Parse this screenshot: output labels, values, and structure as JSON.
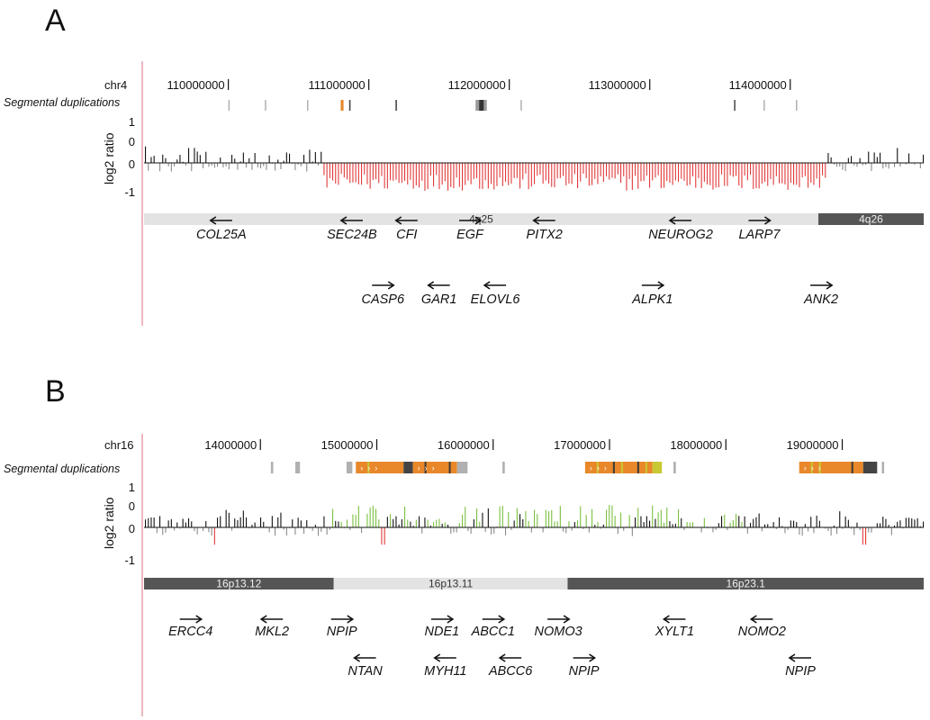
{
  "colors": {
    "loss": "#e23a3a",
    "gain": "#7cc142",
    "neutral_pos": "#111111",
    "neutral_neg": "#8a8a8a",
    "band_dark": "#555555",
    "band_light": "#e3e3e3",
    "segdup_orange": "#e8882a",
    "segdup_yellow": "#c8c832",
    "segdup_gray": "#7a7a7a",
    "left_rule": "#e8a0a8"
  },
  "chart_data": [
    {
      "panel": "A",
      "type": "bar",
      "chromosome_label": "chr4",
      "segdup_label": "Segmental duplications",
      "ylabel": "log2 ratio",
      "yticks": [
        "1",
        "0",
        "0",
        "-1"
      ],
      "xlim": [
        109400000,
        114950000
      ],
      "x_ticks": [
        {
          "value": 110000000,
          "label": "110000000"
        },
        {
          "value": 111000000,
          "label": "111000000"
        },
        {
          "value": 112000000,
          "label": "112000000"
        },
        {
          "value": 113000000,
          "label": "113000000"
        },
        {
          "value": 114000000,
          "label": "114000000"
        }
      ],
      "segdups": [
        {
          "start": 110000000,
          "end": 110006000,
          "color": "gray"
        },
        {
          "start": 110260000,
          "end": 110266000,
          "color": "gray"
        },
        {
          "start": 110560000,
          "end": 110566000,
          "color": "gray"
        },
        {
          "start": 110800000,
          "end": 110820000,
          "color": "orange"
        },
        {
          "start": 110860000,
          "end": 110870000,
          "color": "dark"
        },
        {
          "start": 111190000,
          "end": 111200000,
          "color": "dark"
        },
        {
          "start": 111760000,
          "end": 111840000,
          "color": "mixed"
        },
        {
          "start": 112080000,
          "end": 112088000,
          "color": "gray"
        },
        {
          "start": 113600000,
          "end": 113608000,
          "color": "dark"
        },
        {
          "start": 113810000,
          "end": 113816000,
          "color": "gray"
        },
        {
          "start": 114040000,
          "end": 114046000,
          "color": "gray"
        }
      ],
      "loss_region": [
        110660000,
        114260000
      ],
      "loss_mean": -0.85,
      "bands": [
        {
          "label": "4q25",
          "start": 109400000,
          "end": 114200000,
          "shade": "light"
        },
        {
          "label": "4q26",
          "start": 114200000,
          "end": 114950000,
          "shade": "dark"
        }
      ],
      "genes": [
        {
          "name": "COL25A",
          "pos": 109950000,
          "dir": "left",
          "row": 0
        },
        {
          "name": "SEC24B",
          "pos": 110880000,
          "dir": "left",
          "row": 0
        },
        {
          "name": "CFI",
          "pos": 111270000,
          "dir": "left",
          "row": 0
        },
        {
          "name": "EGF",
          "pos": 111720000,
          "dir": "right",
          "row": 0
        },
        {
          "name": "PITX2",
          "pos": 112250000,
          "dir": "left",
          "row": 0
        },
        {
          "name": "NEUROG2",
          "pos": 113220000,
          "dir": "left",
          "row": 0
        },
        {
          "name": "LARP7",
          "pos": 113780000,
          "dir": "right",
          "row": 0
        },
        {
          "name": "CASP6",
          "pos": 111100000,
          "dir": "right",
          "row": 1
        },
        {
          "name": "GAR1",
          "pos": 111500000,
          "dir": "left",
          "row": 1
        },
        {
          "name": "ELOVL6",
          "pos": 111900000,
          "dir": "left",
          "row": 1
        },
        {
          "name": "ALPK1",
          "pos": 113020000,
          "dir": "right",
          "row": 1
        },
        {
          "name": "ANK2",
          "pos": 114220000,
          "dir": "right",
          "row": 1
        }
      ]
    },
    {
      "panel": "B",
      "type": "bar",
      "chromosome_label": "chr16",
      "segdup_label": "Segmental duplications",
      "ylabel": "log2 ratio",
      "yticks": [
        "1",
        "0",
        "0",
        "-1"
      ],
      "xlim": [
        13000000,
        19700000
      ],
      "x_ticks": [
        {
          "value": 14000000,
          "label": "14000000"
        },
        {
          "value": 15000000,
          "label": "15000000"
        },
        {
          "value": 16000000,
          "label": "16000000"
        },
        {
          "value": 17000000,
          "label": "17000000"
        },
        {
          "value": 18000000,
          "label": "18000000"
        },
        {
          "value": 19000000,
          "label": "19000000"
        }
      ],
      "segdups": [
        {
          "start": 14090000,
          "end": 14110000,
          "color": "gray"
        },
        {
          "start": 14300000,
          "end": 14340000,
          "color": "gray"
        },
        {
          "start": 14740000,
          "end": 14790000,
          "color": "gray"
        },
        {
          "start": 14820000,
          "end": 15230000,
          "color": "orange"
        },
        {
          "start": 15230000,
          "end": 15310000,
          "color": "dark"
        },
        {
          "start": 15310000,
          "end": 15690000,
          "color": "orange"
        },
        {
          "start": 15690000,
          "end": 15780000,
          "color": "gray"
        },
        {
          "start": 16080000,
          "end": 16100000,
          "color": "gray"
        },
        {
          "start": 16790000,
          "end": 17370000,
          "color": "orange"
        },
        {
          "start": 17370000,
          "end": 17450000,
          "color": "yellow"
        },
        {
          "start": 17550000,
          "end": 17570000,
          "color": "gray"
        },
        {
          "start": 18630000,
          "end": 19180000,
          "color": "orange"
        },
        {
          "start": 19180000,
          "end": 19300000,
          "color": "dark"
        },
        {
          "start": 19340000,
          "end": 19360000,
          "color": "gray"
        }
      ],
      "gain_region": [
        14550000,
        18150000
      ],
      "bands": [
        {
          "label": "16p13.12",
          "start": 13000000,
          "end": 14630000,
          "shade": "dark"
        },
        {
          "label": "16p13.11",
          "start": 14630000,
          "end": 16640000,
          "shade": "light"
        },
        {
          "label": "16p23.1",
          "start": 16640000,
          "end": 19700000,
          "shade": "dark"
        }
      ],
      "genes": [
        {
          "name": "ERCC4",
          "pos": 13400000,
          "dir": "right",
          "row": 0
        },
        {
          "name": "MKL2",
          "pos": 14100000,
          "dir": "left",
          "row": 0
        },
        {
          "name": "NPIP",
          "pos": 14700000,
          "dir": "right",
          "row": 0
        },
        {
          "name": "NDE1",
          "pos": 15560000,
          "dir": "right",
          "row": 0
        },
        {
          "name": "ABCC1",
          "pos": 16000000,
          "dir": "right",
          "row": 0
        },
        {
          "name": "NOMO3",
          "pos": 16560000,
          "dir": "right",
          "row": 0
        },
        {
          "name": "XYLT1",
          "pos": 17560000,
          "dir": "left",
          "row": 0
        },
        {
          "name": "NOMO2",
          "pos": 18310000,
          "dir": "left",
          "row": 0
        },
        {
          "name": "NTAN",
          "pos": 14900000,
          "dir": "left",
          "row": 1
        },
        {
          "name": "MYH11",
          "pos": 15590000,
          "dir": "left",
          "row": 1
        },
        {
          "name": "ABCC6",
          "pos": 16150000,
          "dir": "left",
          "row": 1
        },
        {
          "name": "NPIP",
          "pos": 16780000,
          "dir": "right",
          "row": 1
        },
        {
          "name": "NPIP",
          "pos": 18640000,
          "dir": "left",
          "row": 1
        }
      ]
    }
  ]
}
